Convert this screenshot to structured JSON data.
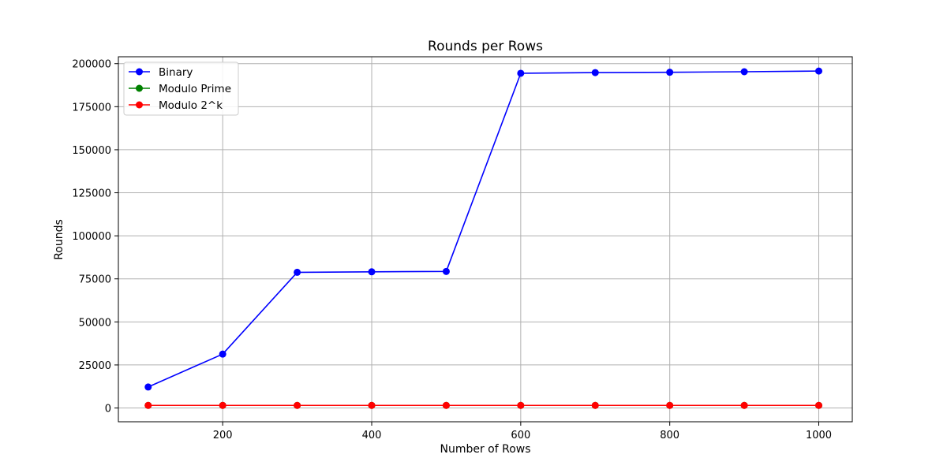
{
  "chart_data": {
    "type": "line",
    "title": "Rounds per Rows",
    "xlabel": "Number of Rows",
    "ylabel": "Rounds",
    "x": [
      100,
      200,
      300,
      400,
      500,
      600,
      700,
      800,
      900,
      1000
    ],
    "xlim": [
      60,
      1045
    ],
    "ylim": [
      -8000,
      204000
    ],
    "xticks": [
      200,
      400,
      600,
      800,
      1000
    ],
    "yticks": [
      0,
      25000,
      50000,
      75000,
      100000,
      125000,
      150000,
      175000,
      200000
    ],
    "grid": true,
    "legend_position": "top-left",
    "series": [
      {
        "name": "Binary",
        "color": "#0000ff",
        "marker": "circle",
        "values": [
          12200,
          31300,
          78800,
          79100,
          79300,
          194400,
          194800,
          195000,
          195300,
          195700
        ]
      },
      {
        "name": "Modulo Prime",
        "color": "#008000",
        "marker": "circle",
        "values": [
          1500,
          1500,
          1500,
          1500,
          1500,
          1500,
          1500,
          1500,
          1500,
          1500
        ]
      },
      {
        "name": "Modulo 2^k",
        "color": "#ff0000",
        "marker": "circle",
        "values": [
          1500,
          1500,
          1500,
          1500,
          1500,
          1500,
          1500,
          1500,
          1500,
          1500
        ]
      }
    ]
  }
}
